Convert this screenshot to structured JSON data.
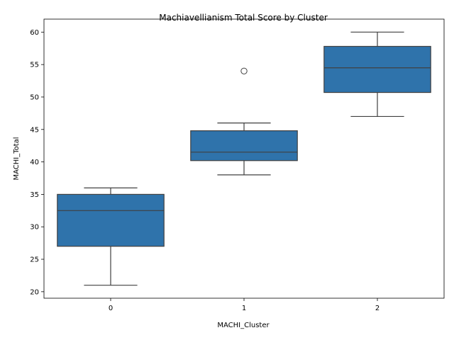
{
  "chart_data": {
    "type": "box",
    "title": "Machiavellianism Total Score by Cluster",
    "xlabel": "MACHI_Cluster",
    "ylabel": "MACHI_Total",
    "ylim": [
      19,
      62
    ],
    "yticks": [
      20,
      25,
      30,
      35,
      40,
      45,
      50,
      55,
      60
    ],
    "categories": [
      "0",
      "1",
      "2"
    ],
    "boxes": [
      {
        "category": "0",
        "whisker_low": 21,
        "q1": 27,
        "median": 32.5,
        "q3": 35,
        "whisker_high": 36,
        "outliers": []
      },
      {
        "category": "1",
        "whisker_low": 38,
        "q1": 40.2,
        "median": 41.5,
        "q3": 44.8,
        "whisker_high": 46,
        "outliers": [
          54
        ]
      },
      {
        "category": "2",
        "whisker_low": 47,
        "q1": 50.7,
        "median": 54.5,
        "q3": 57.8,
        "whisker_high": 60,
        "outliers": []
      }
    ],
    "box_color": "#2f73ab",
    "line_color": "#404040",
    "grid": false,
    "legend": "none"
  }
}
